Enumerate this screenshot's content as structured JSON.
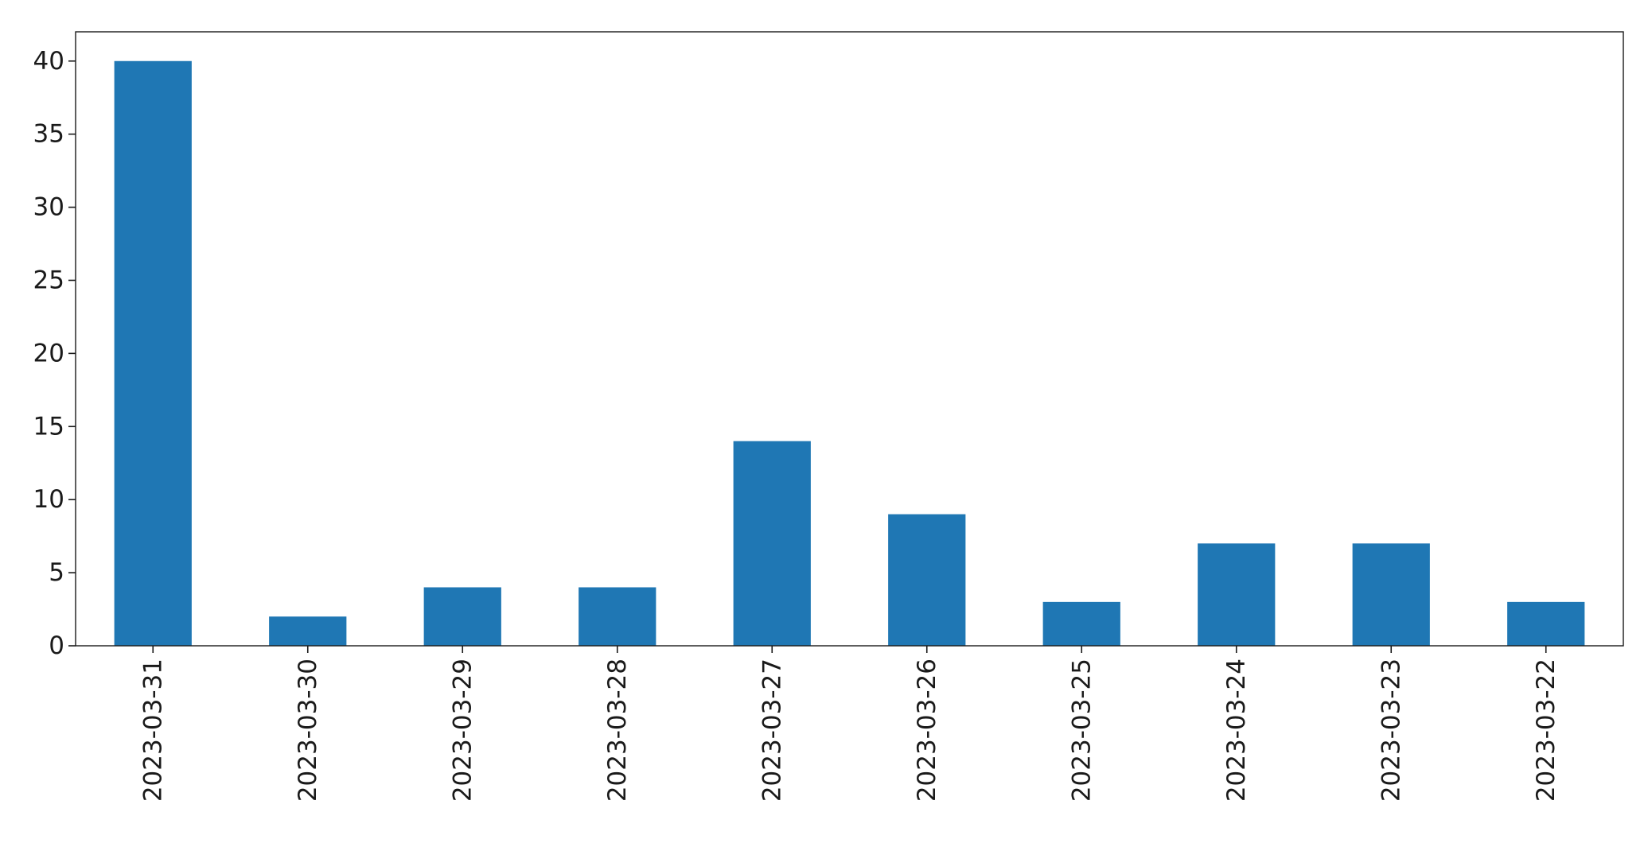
{
  "chart_data": {
    "type": "bar",
    "title": "",
    "xlabel": "",
    "ylabel": "",
    "categories": [
      "2023-03-31",
      "2023-03-30",
      "2023-03-29",
      "2023-03-28",
      "2023-03-27",
      "2023-03-26",
      "2023-03-25",
      "2023-03-24",
      "2023-03-23",
      "2023-03-22"
    ],
    "values": [
      40,
      2,
      4,
      4,
      14,
      9,
      3,
      7,
      7,
      3
    ],
    "ylim": [
      0,
      42
    ],
    "yticks": [
      "0",
      "5",
      "10",
      "15",
      "20",
      "25",
      "30",
      "35",
      "40"
    ],
    "bar_color": "#1f77b4",
    "grid": false,
    "legend": "none"
  }
}
